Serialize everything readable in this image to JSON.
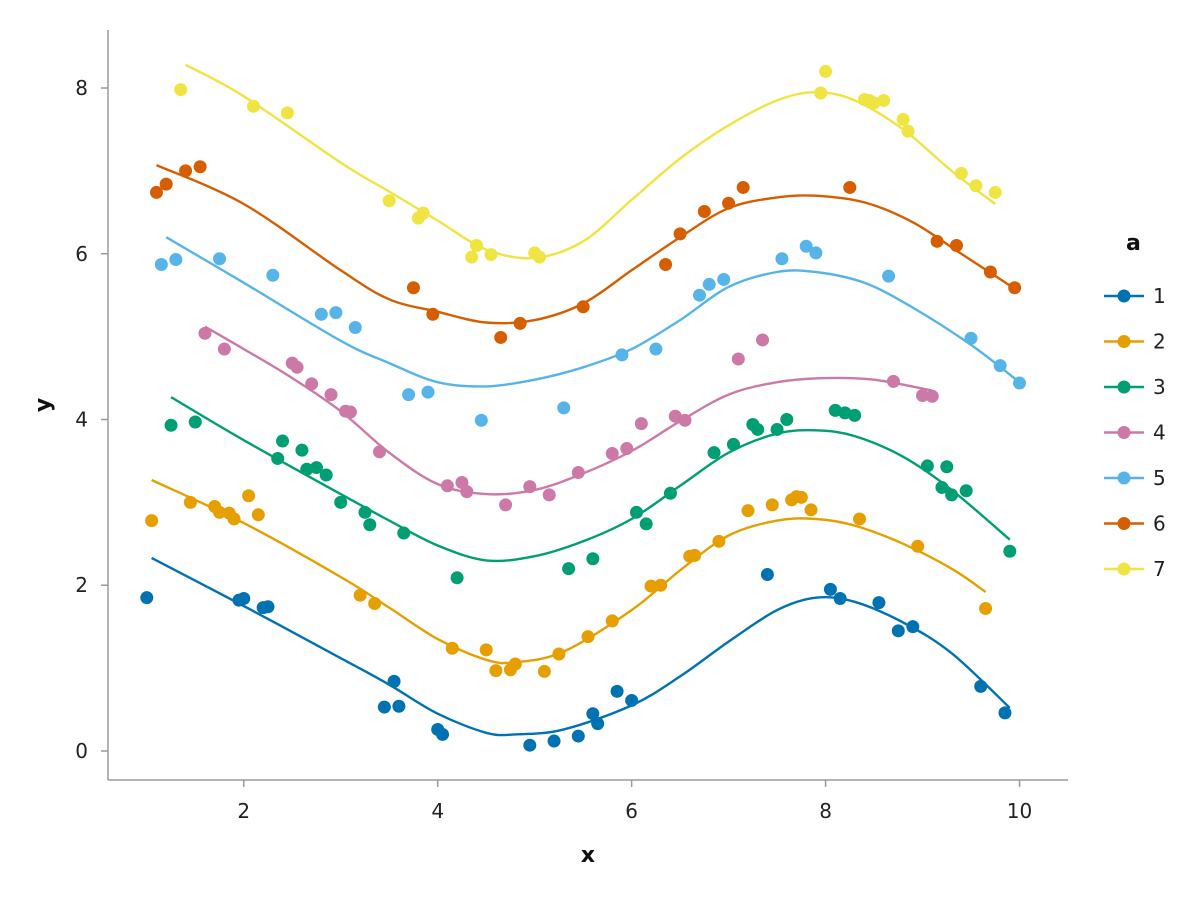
{
  "chart_data": {
    "type": "scatter",
    "title": "",
    "xlabel": "x",
    "ylabel": "y",
    "xlim": [
      0.6,
      10.5
    ],
    "ylim": [
      -0.35,
      8.7
    ],
    "xticks": [
      2,
      4,
      6,
      8,
      10
    ],
    "yticks": [
      0,
      2,
      4,
      6,
      8
    ],
    "grid": false,
    "legend": {
      "title": "a",
      "placement": "right"
    },
    "series": [
      {
        "name": "1",
        "color": "#0072B2",
        "points": [
          [
            1.0,
            1.85
          ],
          [
            1.95,
            1.82
          ],
          [
            2.0,
            1.84
          ],
          [
            2.2,
            1.73
          ],
          [
            2.25,
            1.74
          ],
          [
            3.45,
            0.53
          ],
          [
            3.55,
            0.84
          ],
          [
            3.6,
            0.54
          ],
          [
            4.0,
            0.26
          ],
          [
            4.05,
            0.2
          ],
          [
            4.95,
            0.07
          ],
          [
            5.2,
            0.12
          ],
          [
            5.45,
            0.18
          ],
          [
            5.6,
            0.45
          ],
          [
            5.65,
            0.33
          ],
          [
            5.85,
            0.72
          ],
          [
            6.0,
            0.61
          ],
          [
            7.4,
            2.13
          ],
          [
            8.05,
            1.95
          ],
          [
            8.15,
            1.84
          ],
          [
            8.55,
            1.79
          ],
          [
            8.75,
            1.45
          ],
          [
            8.9,
            1.5
          ],
          [
            9.6,
            0.78
          ],
          [
            9.85,
            0.46
          ]
        ],
        "fit": [
          [
            1.05,
            2.33
          ],
          [
            2.0,
            1.75
          ],
          [
            3.0,
            1.12
          ],
          [
            3.5,
            0.8
          ],
          [
            4.0,
            0.45
          ],
          [
            4.5,
            0.22
          ],
          [
            4.8,
            0.2
          ],
          [
            5.3,
            0.26
          ],
          [
            6.0,
            0.55
          ],
          [
            6.5,
            0.9
          ],
          [
            7.0,
            1.32
          ],
          [
            7.5,
            1.7
          ],
          [
            7.9,
            1.85
          ],
          [
            8.3,
            1.8
          ],
          [
            8.8,
            1.55
          ],
          [
            9.3,
            1.18
          ],
          [
            9.9,
            0.52
          ]
        ]
      },
      {
        "name": "2",
        "color": "#E69F00",
        "points": [
          [
            1.05,
            2.78
          ],
          [
            1.45,
            3.0
          ],
          [
            1.7,
            2.95
          ],
          [
            1.75,
            2.88
          ],
          [
            1.85,
            2.87
          ],
          [
            1.9,
            2.8
          ],
          [
            2.05,
            3.08
          ],
          [
            2.15,
            2.85
          ],
          [
            3.2,
            1.88
          ],
          [
            3.35,
            1.78
          ],
          [
            4.15,
            1.24
          ],
          [
            4.5,
            1.22
          ],
          [
            4.6,
            0.97
          ],
          [
            4.75,
            0.98
          ],
          [
            4.8,
            1.05
          ],
          [
            5.1,
            0.96
          ],
          [
            5.25,
            1.17
          ],
          [
            5.55,
            1.38
          ],
          [
            5.8,
            1.57
          ],
          [
            6.2,
            1.99
          ],
          [
            6.3,
            2.0
          ],
          [
            6.6,
            2.35
          ],
          [
            6.65,
            2.36
          ],
          [
            6.9,
            2.53
          ],
          [
            7.2,
            2.9
          ],
          [
            7.45,
            2.97
          ],
          [
            7.65,
            3.03
          ],
          [
            7.7,
            3.07
          ],
          [
            7.75,
            3.06
          ],
          [
            7.85,
            2.91
          ],
          [
            8.35,
            2.8
          ],
          [
            8.95,
            2.47
          ],
          [
            9.65,
            1.72
          ]
        ],
        "fit": [
          [
            1.05,
            3.27
          ],
          [
            2.0,
            2.75
          ],
          [
            3.0,
            2.1
          ],
          [
            3.5,
            1.73
          ],
          [
            4.0,
            1.35
          ],
          [
            4.5,
            1.1
          ],
          [
            4.8,
            1.07
          ],
          [
            5.3,
            1.2
          ],
          [
            6.0,
            1.7
          ],
          [
            6.5,
            2.18
          ],
          [
            7.0,
            2.6
          ],
          [
            7.5,
            2.78
          ],
          [
            7.9,
            2.8
          ],
          [
            8.3,
            2.72
          ],
          [
            8.8,
            2.5
          ],
          [
            9.3,
            2.2
          ],
          [
            9.65,
            1.92
          ]
        ]
      },
      {
        "name": "3",
        "color": "#009E73",
        "points": [
          [
            1.25,
            3.93
          ],
          [
            1.5,
            3.97
          ],
          [
            2.35,
            3.53
          ],
          [
            2.4,
            3.74
          ],
          [
            2.6,
            3.63
          ],
          [
            2.65,
            3.4
          ],
          [
            2.75,
            3.42
          ],
          [
            2.85,
            3.33
          ],
          [
            3.0,
            3.0
          ],
          [
            3.25,
            2.88
          ],
          [
            3.3,
            2.73
          ],
          [
            3.65,
            2.63
          ],
          [
            4.2,
            2.09
          ],
          [
            5.35,
            2.2
          ],
          [
            5.6,
            2.32
          ],
          [
            6.05,
            2.88
          ],
          [
            6.15,
            2.74
          ],
          [
            6.4,
            3.11
          ],
          [
            6.85,
            3.6
          ],
          [
            7.05,
            3.7
          ],
          [
            7.25,
            3.94
          ],
          [
            7.3,
            3.88
          ],
          [
            7.5,
            3.88
          ],
          [
            7.6,
            4.0
          ],
          [
            8.1,
            4.11
          ],
          [
            8.2,
            4.08
          ],
          [
            8.3,
            4.05
          ],
          [
            9.05,
            3.44
          ],
          [
            9.2,
            3.18
          ],
          [
            9.25,
            3.43
          ],
          [
            9.3,
            3.09
          ],
          [
            9.45,
            3.14
          ],
          [
            9.9,
            2.41
          ]
        ],
        "fit": [
          [
            1.25,
            4.27
          ],
          [
            2.0,
            3.75
          ],
          [
            3.0,
            3.1
          ],
          [
            3.5,
            2.78
          ],
          [
            4.0,
            2.48
          ],
          [
            4.5,
            2.3
          ],
          [
            5.0,
            2.35
          ],
          [
            5.5,
            2.53
          ],
          [
            6.0,
            2.8
          ],
          [
            6.5,
            3.2
          ],
          [
            7.0,
            3.6
          ],
          [
            7.5,
            3.83
          ],
          [
            7.9,
            3.87
          ],
          [
            8.3,
            3.8
          ],
          [
            8.8,
            3.55
          ],
          [
            9.3,
            3.15
          ],
          [
            9.9,
            2.55
          ]
        ]
      },
      {
        "name": "4",
        "color": "#CC79A7",
        "points": [
          [
            1.6,
            5.04
          ],
          [
            1.8,
            4.85
          ],
          [
            2.5,
            4.68
          ],
          [
            2.55,
            4.63
          ],
          [
            2.7,
            4.43
          ],
          [
            2.9,
            4.3
          ],
          [
            3.05,
            4.1
          ],
          [
            3.1,
            4.09
          ],
          [
            3.4,
            3.61
          ],
          [
            4.1,
            3.2
          ],
          [
            4.25,
            3.24
          ],
          [
            4.3,
            3.13
          ],
          [
            4.7,
            2.97
          ],
          [
            4.95,
            3.19
          ],
          [
            5.15,
            3.09
          ],
          [
            5.45,
            3.36
          ],
          [
            5.8,
            3.59
          ],
          [
            5.95,
            3.65
          ],
          [
            6.1,
            3.95
          ],
          [
            6.45,
            4.04
          ],
          [
            6.55,
            3.99
          ],
          [
            7.1,
            4.73
          ],
          [
            7.35,
            4.96
          ],
          [
            8.7,
            4.46
          ],
          [
            9.0,
            4.29
          ],
          [
            9.1,
            4.28
          ]
        ],
        "fit": [
          [
            1.6,
            5.12
          ],
          [
            2.0,
            4.85
          ],
          [
            2.5,
            4.5
          ],
          [
            3.0,
            4.1
          ],
          [
            3.5,
            3.6
          ],
          [
            4.0,
            3.22
          ],
          [
            4.5,
            3.1
          ],
          [
            5.0,
            3.15
          ],
          [
            5.5,
            3.35
          ],
          [
            6.0,
            3.62
          ],
          [
            6.5,
            3.98
          ],
          [
            7.0,
            4.3
          ],
          [
            7.5,
            4.45
          ],
          [
            8.0,
            4.5
          ],
          [
            8.5,
            4.48
          ],
          [
            9.1,
            4.35
          ]
        ]
      },
      {
        "name": "5",
        "color": "#56B4E9",
        "points": [
          [
            1.15,
            5.87
          ],
          [
            1.3,
            5.93
          ],
          [
            1.75,
            5.94
          ],
          [
            2.3,
            5.74
          ],
          [
            2.8,
            5.27
          ],
          [
            2.95,
            5.29
          ],
          [
            3.15,
            5.11
          ],
          [
            3.7,
            4.3
          ],
          [
            3.9,
            4.33
          ],
          [
            4.45,
            3.99
          ],
          [
            5.3,
            4.14
          ],
          [
            5.9,
            4.78
          ],
          [
            6.25,
            4.85
          ],
          [
            6.7,
            5.5
          ],
          [
            6.8,
            5.63
          ],
          [
            6.95,
            5.69
          ],
          [
            7.55,
            5.94
          ],
          [
            7.8,
            6.09
          ],
          [
            7.9,
            6.01
          ],
          [
            8.65,
            5.73
          ],
          [
            9.5,
            4.98
          ],
          [
            9.8,
            4.65
          ],
          [
            10.0,
            4.44
          ]
        ],
        "fit": [
          [
            1.2,
            6.2
          ],
          [
            2.0,
            5.65
          ],
          [
            3.0,
            4.95
          ],
          [
            3.5,
            4.68
          ],
          [
            4.0,
            4.45
          ],
          [
            4.5,
            4.4
          ],
          [
            5.0,
            4.48
          ],
          [
            5.5,
            4.63
          ],
          [
            6.0,
            4.85
          ],
          [
            6.5,
            5.2
          ],
          [
            7.0,
            5.6
          ],
          [
            7.5,
            5.78
          ],
          [
            7.9,
            5.78
          ],
          [
            8.4,
            5.65
          ],
          [
            8.9,
            5.35
          ],
          [
            9.5,
            4.9
          ],
          [
            10.0,
            4.45
          ]
        ]
      },
      {
        "name": "6",
        "color": "#D55E00",
        "points": [
          [
            1.1,
            6.74
          ],
          [
            1.2,
            6.84
          ],
          [
            1.4,
            7.0
          ],
          [
            1.55,
            7.05
          ],
          [
            3.75,
            5.59
          ],
          [
            3.95,
            5.27
          ],
          [
            4.65,
            4.99
          ],
          [
            4.85,
            5.16
          ],
          [
            5.5,
            5.36
          ],
          [
            6.35,
            5.87
          ],
          [
            6.5,
            6.24
          ],
          [
            6.75,
            6.51
          ],
          [
            7.0,
            6.61
          ],
          [
            7.15,
            6.8
          ],
          [
            8.25,
            6.8
          ],
          [
            9.15,
            6.15
          ],
          [
            9.35,
            6.1
          ],
          [
            9.7,
            5.78
          ],
          [
            9.95,
            5.59
          ]
        ],
        "fit": [
          [
            1.1,
            7.07
          ],
          [
            2.0,
            6.6
          ],
          [
            3.0,
            5.8
          ],
          [
            3.5,
            5.45
          ],
          [
            4.0,
            5.3
          ],
          [
            4.5,
            5.17
          ],
          [
            5.0,
            5.2
          ],
          [
            5.5,
            5.4
          ],
          [
            6.0,
            5.8
          ],
          [
            6.5,
            6.2
          ],
          [
            7.0,
            6.55
          ],
          [
            7.5,
            6.68
          ],
          [
            7.9,
            6.7
          ],
          [
            8.4,
            6.62
          ],
          [
            8.9,
            6.38
          ],
          [
            9.4,
            6.0
          ],
          [
            9.95,
            5.58
          ]
        ]
      },
      {
        "name": "7",
        "color": "#F0E442",
        "points": [
          [
            1.35,
            7.98
          ],
          [
            2.1,
            7.78
          ],
          [
            2.45,
            7.7
          ],
          [
            3.5,
            6.64
          ],
          [
            3.8,
            6.43
          ],
          [
            3.85,
            6.49
          ],
          [
            4.35,
            5.96
          ],
          [
            4.4,
            6.1
          ],
          [
            4.55,
            5.99
          ],
          [
            5.0,
            6.01
          ],
          [
            5.05,
            5.96
          ],
          [
            7.95,
            7.94
          ],
          [
            8.0,
            8.2
          ],
          [
            8.4,
            7.86
          ],
          [
            8.45,
            7.85
          ],
          [
            8.5,
            7.82
          ],
          [
            8.6,
            7.85
          ],
          [
            8.8,
            7.62
          ],
          [
            8.85,
            7.48
          ],
          [
            9.4,
            6.97
          ],
          [
            9.55,
            6.82
          ],
          [
            9.75,
            6.74
          ]
        ],
        "fit": [
          [
            1.4,
            8.28
          ],
          [
            2.0,
            7.9
          ],
          [
            3.0,
            7.1
          ],
          [
            3.5,
            6.75
          ],
          [
            4.0,
            6.4
          ],
          [
            4.5,
            6.05
          ],
          [
            5.0,
            5.95
          ],
          [
            5.5,
            6.15
          ],
          [
            6.0,
            6.65
          ],
          [
            6.5,
            7.15
          ],
          [
            7.0,
            7.55
          ],
          [
            7.5,
            7.85
          ],
          [
            7.9,
            7.95
          ],
          [
            8.3,
            7.85
          ],
          [
            8.8,
            7.5
          ],
          [
            9.3,
            7.0
          ],
          [
            9.75,
            6.6
          ]
        ]
      }
    ]
  }
}
